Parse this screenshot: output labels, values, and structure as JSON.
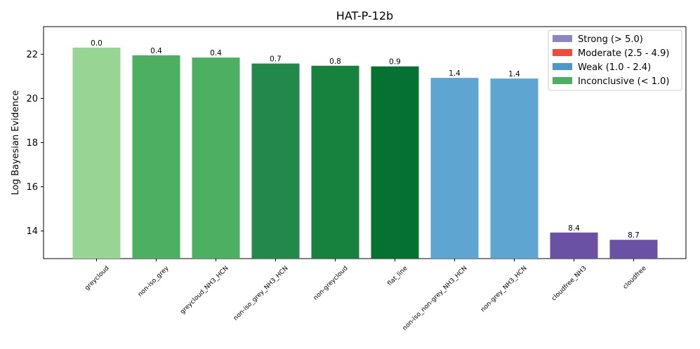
{
  "chart_data": {
    "type": "bar",
    "title": "HAT-P-12b",
    "xlabel": "",
    "ylabel": "Log Bayesian Evidence",
    "ylim": [
      12.75,
      23.25
    ],
    "yticks": [
      14,
      16,
      18,
      20,
      22
    ],
    "categories": [
      "greycloud",
      "non-iso_grey",
      "greycloud_NH3_HCN",
      "non-iso_grey_NH3_HCN",
      "non-greycloud",
      "flat_line",
      "non-iso_non-grey_NH3_HCN",
      "non-grey_NH3_HCN",
      "cloudfree_NH3",
      "cloudfree"
    ],
    "values": [
      22.3,
      21.95,
      21.85,
      21.58,
      21.48,
      21.45,
      20.93,
      20.9,
      13.93,
      13.6
    ],
    "bar_labels": [
      "0.0",
      "0.4",
      "0.4",
      "0.7",
      "0.8",
      "0.9",
      "1.4",
      "1.4",
      "8.4",
      "8.7"
    ],
    "bar_colors": [
      "#98d594",
      "#4daf62",
      "#4daf62",
      "#23894a",
      "#17813e",
      "#067231",
      "#5fa5d1",
      "#5fa5d1",
      "#6a51a3",
      "#6a51a3"
    ],
    "legend": {
      "placement": "top-right",
      "entries": [
        {
          "label": "Strong (> 5.0)",
          "color": "#8c87c3"
        },
        {
          "label": "Moderate (2.5 - 4.9)",
          "color": "#f2493b"
        },
        {
          "label": "Weak (1.0 - 2.4)",
          "color": "#4b98c9"
        },
        {
          "label": "Inconclusive (< 1.0)",
          "color": "#4daf62"
        }
      ]
    },
    "grid": false
  }
}
